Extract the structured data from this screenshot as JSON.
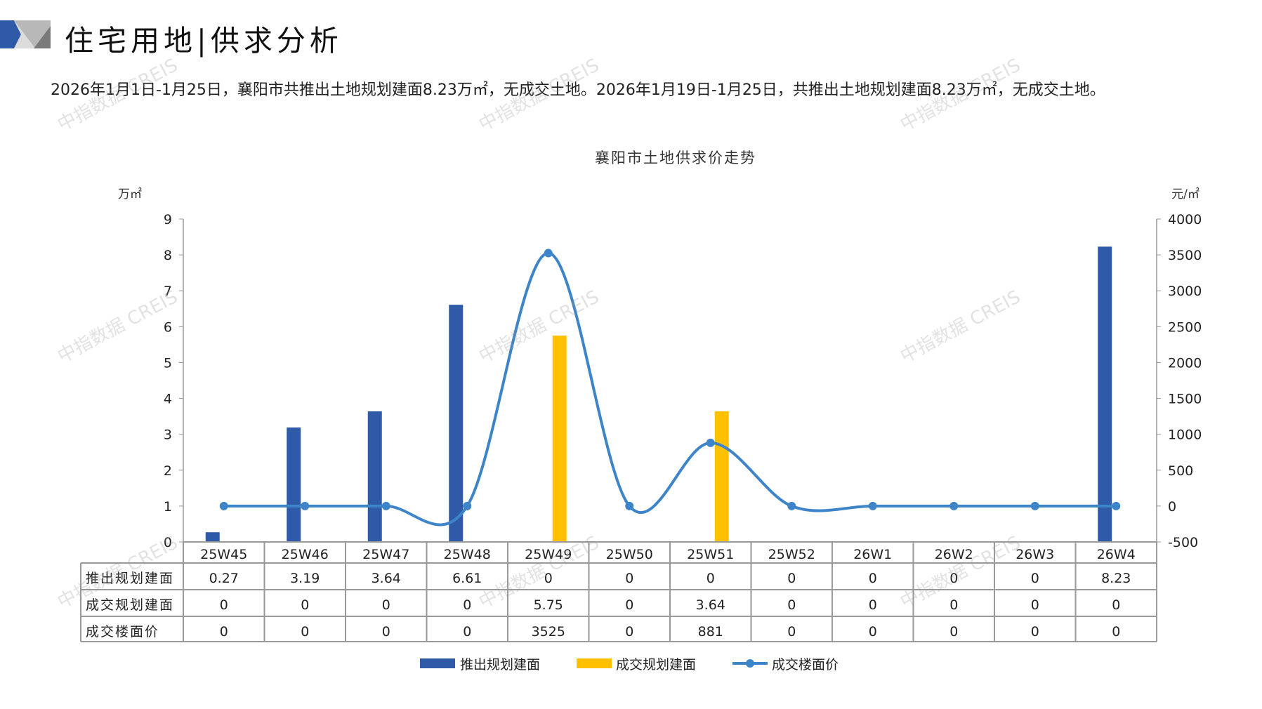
{
  "header": {
    "title": "住宅用地|供求分析",
    "summary": "2026年1月1日-1月25日，襄阳市共推出土地规划建面8.23万㎡，无成交土地。2026年1月19日-1月25日，共推出土地规划建面8.23万㎡，无成交土地。"
  },
  "watermark": "中指数据 CREIS",
  "colors": {
    "supply": "#2f5aa8",
    "deal": "#ffc000",
    "price": "#3d85c8",
    "grid": "#999999"
  },
  "chart_data": {
    "type": "bar+line",
    "title": "襄阳市土地供求价走势",
    "ylabel_left": "万㎡",
    "ylabel_right": "元/㎡",
    "ylim_left": [
      0,
      9
    ],
    "yticks_left": [
      "0",
      "1",
      "2",
      "3",
      "4",
      "5",
      "6",
      "7",
      "8",
      "9"
    ],
    "ylim_right": [
      -500,
      4000
    ],
    "yticks_right": [
      "-500",
      "0",
      "500",
      "1000",
      "1500",
      "2000",
      "2500",
      "3000",
      "3500",
      "4000"
    ],
    "categories": [
      "25W45",
      "25W46",
      "25W47",
      "25W48",
      "25W49",
      "25W50",
      "25W51",
      "25W52",
      "26W1",
      "26W2",
      "26W3",
      "26W4"
    ],
    "series": [
      {
        "name": "推出规划建面",
        "type": "bar",
        "axis": "left",
        "values": [
          0.27,
          3.19,
          3.64,
          6.61,
          0,
          0,
          0,
          0,
          0,
          0,
          0,
          8.23
        ],
        "labels": [
          "0.27",
          "3.19",
          "3.64",
          "6.61",
          "0",
          "0",
          "0",
          "0",
          "0",
          "0",
          "0",
          "8.23"
        ]
      },
      {
        "name": "成交规划建面",
        "type": "bar",
        "axis": "left",
        "values": [
          0,
          0,
          0,
          0,
          5.75,
          0,
          3.64,
          0,
          0,
          0,
          0,
          0
        ],
        "labels": [
          "0",
          "0",
          "0",
          "0",
          "5.75",
          "0",
          "3.64",
          "0",
          "0",
          "0",
          "0",
          "0"
        ]
      },
      {
        "name": "成交楼面价",
        "type": "line",
        "smooth": true,
        "axis": "right",
        "values": [
          0,
          0,
          0,
          0,
          3525,
          0,
          881,
          0,
          0,
          0,
          0,
          0
        ],
        "labels": [
          "0",
          "0",
          "0",
          "0",
          "3525",
          "0",
          "881",
          "0",
          "0",
          "0",
          "0",
          "0"
        ]
      }
    ],
    "data_table": true,
    "legend": "bottom",
    "grid": false
  }
}
